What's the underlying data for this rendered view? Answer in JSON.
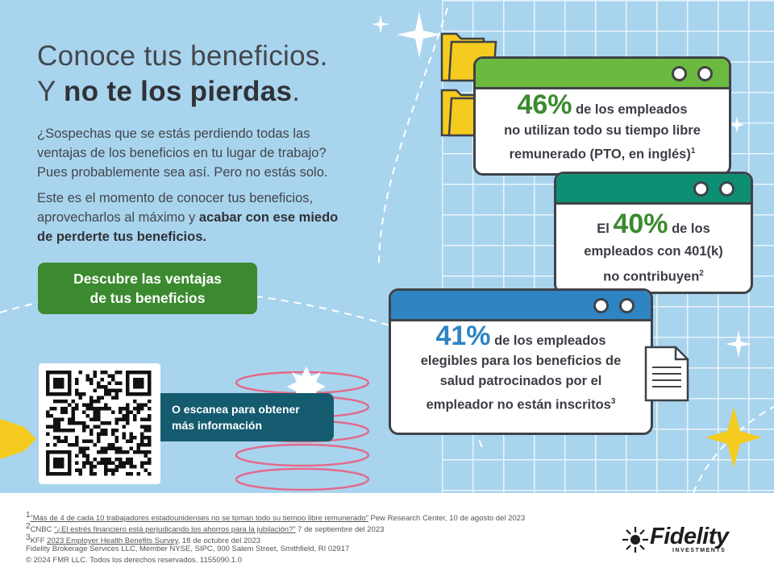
{
  "headline": {
    "line1": "Conoce tus beneficios.",
    "line2_prefix": "Y ",
    "line2_bold": "no te los pierdas",
    "line2_suffix": "."
  },
  "intro": {
    "line1": "¿Sospechas que se estás perdiendo  todas las",
    "line2": "ventajas de los beneficios en tu lugar de trabajo?",
    "line3": "Pues probablemente  sea así. Pero no estás solo."
  },
  "moment": {
    "line1": "Este es el momento de conocer tus beneficios,",
    "line2_prefix": "aprovecharlos al máximo y ",
    "line2_bold": "acabar con ese miedo",
    "line3_bold": "de perderte tus beneficios."
  },
  "cta": {
    "line1": "Descubre las ventajas",
    "line2": "de tus beneficios"
  },
  "scan": {
    "line1": "O escanea para obtener",
    "line2": "más información"
  },
  "stats": [
    {
      "percent": "46%",
      "color": "#3b8a2f",
      "bar_color": "#6cb93f",
      "line1_suffix": " de los empleados",
      "line2": "no utilizan todo su tiempo libre",
      "line3": "remunerado (PTO, en inglés)",
      "ref": "1"
    },
    {
      "prefix": "El ",
      "percent": "40%",
      "color": "#3b8a2f",
      "bar_color": "#0e8f74",
      "line1_suffix": " de los",
      "line2": "empleados con 401(k)",
      "line3": "no contribuyen",
      "ref": "2"
    },
    {
      "percent": "41%",
      "color": "#2f84c4",
      "bar_color": "#2f84c4",
      "line1_suffix": " de los empleados",
      "line2": "elegibles para los beneficios de",
      "line3": "salud patrocinados por el",
      "line4": "empleador no están inscritos",
      "ref": "3"
    }
  ],
  "footnotes": {
    "f1_num": "1",
    "f1_link": "“Más de 4 de cada 10 trabajadores estadounidenses no se toman todo su tiempo libre remunerado”",
    "f1_rest": " Pew Research Center,  10 de agosto del 2023",
    "f2_num": "2",
    "f2_pre": "CNBC ",
    "f2_link": "“¿El estrés financiero está perjudicando los ahorros para la jubilación?”",
    "f2_rest": " 7 de septiembre del 2023",
    "f3_num": "3",
    "f3_pre": "KFF ",
    "f3_link": "2023 Employer Health Benefits Survey",
    "f3_rest": ", 18 de octubre del 2023",
    "line4": "Fidelity Brokerage Services LLC, Member NYSE, SIPC, 900 Salem Street, Smithfield, RI 02917",
    "line5": "© 2024 FMR LLC. Todos los derechos reservados. 1155090.1.0"
  },
  "logo": {
    "name": "Fidelity",
    "sub": "INVESTMENTS"
  },
  "colors": {
    "background": "#a9d4ee",
    "cta": "#3b8a2f",
    "scan_panel": "#155b70",
    "yellow": "#f5cb1f",
    "pink": "#e36a8a"
  },
  "icons": [
    "folder-icon",
    "document-icon",
    "sparkle-icon",
    "qr-code"
  ]
}
